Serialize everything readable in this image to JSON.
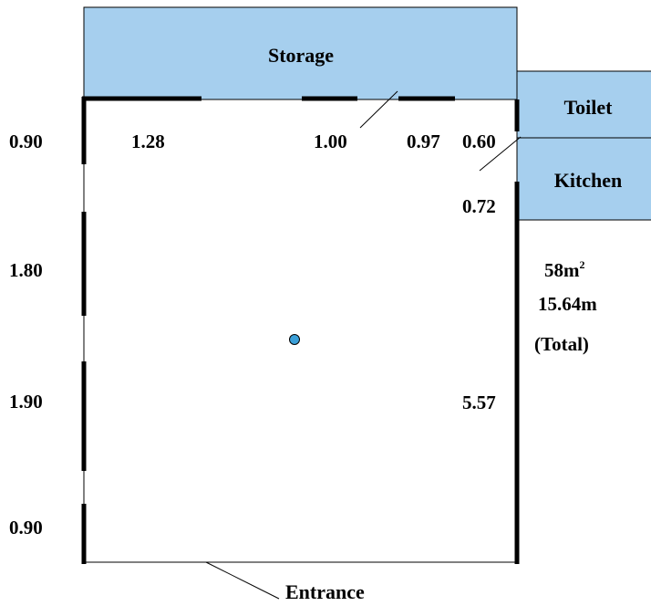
{
  "rooms": {
    "storage": "Storage",
    "toilet": "Toilet",
    "kitchen": "Kitchen",
    "entrance": "Entrance"
  },
  "dimensions": {
    "left_1": "0.90",
    "left_2": "1.80",
    "left_3": "1.90",
    "left_4": "0.90",
    "top_1": "1.28",
    "top_2": "1.00",
    "top_3": "0.97",
    "top_4": "0.60",
    "right_1": "0.72",
    "right_2": "5.57"
  },
  "summary": {
    "area_value": "58m",
    "area_unit_sup": "2",
    "perimeter": "15.64m",
    "note": "(Total)"
  },
  "colors": {
    "room_fill": "#a6cfee",
    "wall": "#000000",
    "marker": "#3a9fd8"
  }
}
